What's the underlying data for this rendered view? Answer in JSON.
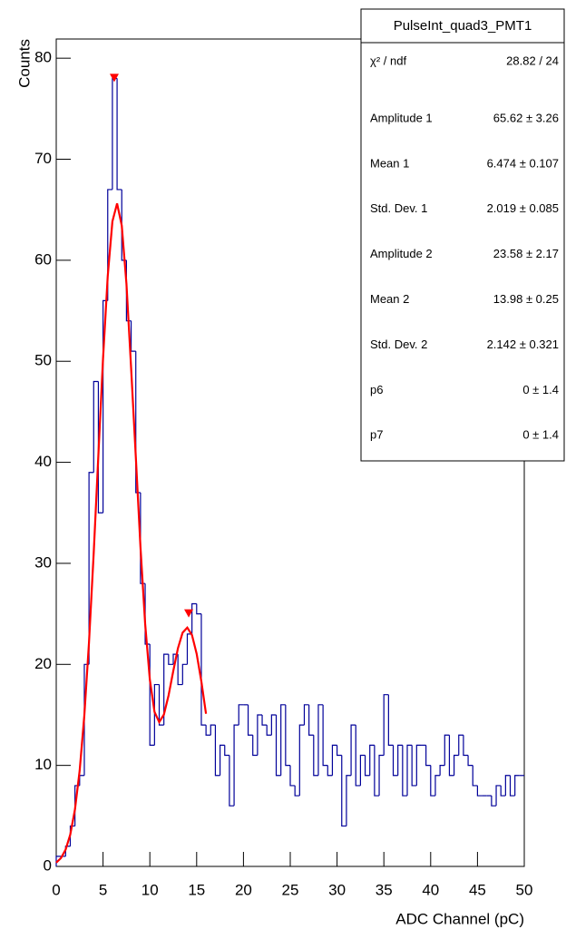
{
  "chart_data": {
    "type": "histogram",
    "xlabel": "ADC Channel (pC)",
    "ylabel": "Counts",
    "xlim": [
      0,
      50
    ],
    "ylim": [
      0,
      81.9
    ],
    "xticks": [
      0,
      5,
      10,
      15,
      20,
      25,
      30,
      35,
      40,
      45,
      50
    ],
    "yticks": [
      0,
      10,
      20,
      30,
      40,
      50,
      60,
      70,
      80
    ],
    "color": "#000099",
    "bins": [
      0,
      0.5,
      1,
      1.5,
      2,
      2.5,
      3,
      3.5,
      4,
      4.5,
      5,
      5.5,
      6,
      6.5,
      7,
      7.5,
      8,
      8.5,
      9,
      9.5,
      10,
      10.5,
      11,
      11.5,
      12,
      12.5,
      13,
      13.5,
      14,
      14.5,
      15,
      15.5,
      16,
      16.5,
      17,
      17.5,
      18,
      18.5,
      19,
      19.5,
      20,
      20.5,
      21,
      21.5,
      22,
      22.5,
      23,
      23.5,
      24,
      24.5,
      25,
      25.5,
      26,
      26.5,
      27,
      27.5,
      28,
      28.5,
      29,
      29.5,
      30,
      30.5,
      31,
      31.5,
      32,
      32.5,
      33,
      33.5,
      34,
      34.5,
      35,
      35.5,
      36,
      36.5,
      37,
      37.5,
      38,
      38.5,
      39,
      39.5,
      40,
      40.5,
      41,
      41.5,
      42,
      42.5,
      43,
      43.5,
      44,
      44.5,
      45,
      45.5,
      46,
      46.5,
      47,
      47.5,
      48,
      48.5,
      49,
      49.5,
      50
    ],
    "counts": [
      1,
      1,
      2,
      4,
      8,
      9,
      20,
      39,
      48,
      35,
      56,
      67,
      78,
      67,
      60,
      54,
      51,
      37,
      28,
      22,
      12,
      18,
      14,
      21,
      20,
      21,
      18,
      20,
      23,
      26,
      25,
      14,
      13,
      14,
      9,
      12,
      11,
      6,
      14,
      16,
      16,
      13,
      11,
      15,
      14,
      13,
      15,
      9,
      16,
      10,
      8,
      7,
      14,
      16,
      13,
      9,
      16,
      10,
      9,
      12,
      11,
      4,
      9,
      14,
      8,
      11,
      9,
      12,
      7,
      11,
      17,
      12,
      9,
      12,
      7,
      12,
      8,
      12,
      12,
      10,
      7,
      9,
      10,
      13,
      9,
      11,
      13,
      11,
      10,
      8,
      7,
      7,
      7,
      6,
      8,
      7,
      9,
      7,
      9,
      9
    ],
    "fit": {
      "color": "#ff0000",
      "x": [
        0,
        0.5,
        1,
        1.5,
        2,
        2.5,
        3,
        3.5,
        4,
        4.5,
        5,
        5.5,
        6,
        6.5,
        7,
        7.5,
        8,
        8.5,
        9,
        9.5,
        10,
        10.5,
        11,
        11.5,
        12,
        12.5,
        13,
        13.5,
        14,
        14.5,
        15,
        15.5,
        16
      ],
      "y": [
        0.38,
        0.82,
        1.66,
        3.16,
        5.64,
        9.46,
        14.93,
        22.18,
        30.97,
        40.69,
        50.27,
        58.41,
        63.84,
        65.62,
        63.43,
        57.68,
        49.32,
        40.55,
        31.58,
        24.0,
        18.48,
        15.29,
        14.28,
        15.03,
        16.93,
        19.33,
        21.59,
        23.14,
        23.64,
        22.91,
        21.05,
        18.33,
        15.11
      ]
    },
    "peaks": {
      "color": "#ff0000",
      "x": [
        6.2,
        14.15
      ],
      "y": [
        78,
        25
      ]
    },
    "stats": {
      "title": "PulseInt_quad3_PMT1",
      "rows": [
        [
          "χ² / ndf",
          "28.82 / 24"
        ],
        [
          "Amplitude 1",
          "65.62 ± 3.26"
        ],
        [
          "Mean 1",
          "6.474 ± 0.107"
        ],
        [
          "Std. Dev. 1",
          "2.019 ± 0.085"
        ],
        [
          "Amplitude 2",
          "23.58 ± 2.17"
        ],
        [
          "Mean 2",
          "13.98 ± 0.25"
        ],
        [
          "Std. Dev. 2",
          "2.142 ± 0.321"
        ],
        [
          "p6",
          "0 ± 1.4"
        ],
        [
          "p7",
          "0 ± 1.4"
        ]
      ]
    }
  }
}
